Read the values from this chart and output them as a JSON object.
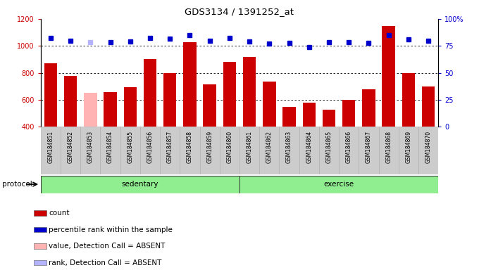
{
  "title": "GDS3134 / 1391252_at",
  "samples": [
    "GSM184851",
    "GSM184852",
    "GSM184853",
    "GSM184854",
    "GSM184855",
    "GSM184856",
    "GSM184857",
    "GSM184858",
    "GSM184859",
    "GSM184860",
    "GSM184861",
    "GSM184862",
    "GSM184863",
    "GSM184864",
    "GSM184865",
    "GSM184866",
    "GSM184867",
    "GSM184868",
    "GSM184869",
    "GSM184870"
  ],
  "bar_values": [
    870,
    775,
    650,
    660,
    695,
    900,
    800,
    1030,
    715,
    880,
    920,
    735,
    550,
    580,
    530,
    600,
    680,
    1145,
    800,
    700
  ],
  "bar_absent": [
    false,
    false,
    true,
    false,
    false,
    false,
    false,
    false,
    false,
    false,
    false,
    false,
    false,
    false,
    false,
    false,
    false,
    false,
    false,
    false
  ],
  "dot_values": [
    1060,
    1040,
    1025,
    1030,
    1035,
    1060,
    1055,
    1080,
    1040,
    1060,
    1035,
    1015,
    1020,
    990,
    1025,
    1030,
    1020,
    1080,
    1050,
    1040
  ],
  "dot_absent": [
    false,
    false,
    true,
    false,
    false,
    false,
    false,
    false,
    false,
    false,
    false,
    false,
    false,
    false,
    false,
    false,
    false,
    false,
    false,
    false
  ],
  "sedentary_count": 10,
  "exercise_count": 10,
  "ylim_left": [
    400,
    1200
  ],
  "ylim_right": [
    0,
    100
  ],
  "bar_color_normal": "#cc0000",
  "bar_color_absent": "#ffb3b3",
  "dot_color_normal": "#0000cc",
  "dot_color_absent": "#b3b3ff",
  "protocol_label": "protocol",
  "sedentary_label": "sedentary",
  "exercise_label": "exercise",
  "legend_items": [
    {
      "label": "count",
      "color": "#cc0000"
    },
    {
      "label": "percentile rank within the sample",
      "color": "#0000cc"
    },
    {
      "label": "value, Detection Call = ABSENT",
      "color": "#ffb3b3"
    },
    {
      "label": "rank, Detection Call = ABSENT",
      "color": "#b3b3ff"
    }
  ]
}
